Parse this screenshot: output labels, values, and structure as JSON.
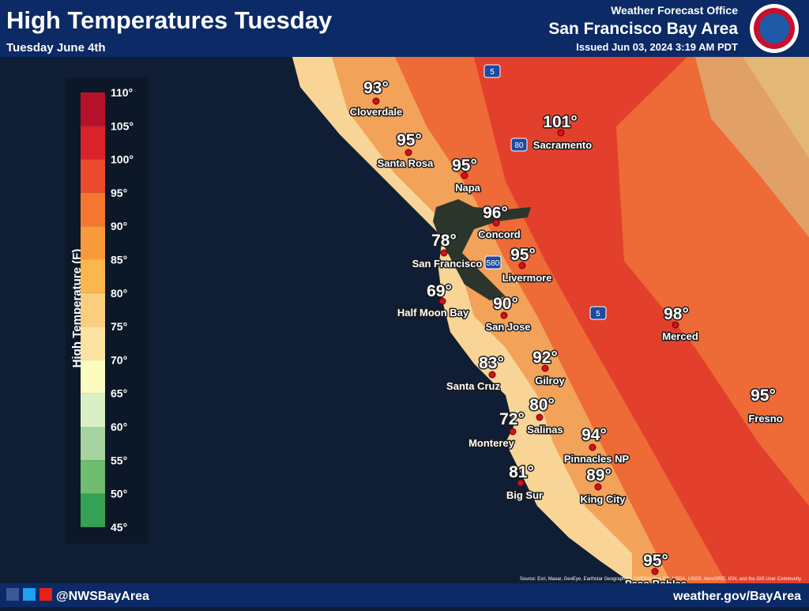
{
  "header": {
    "title": "High Temperatures Tuesday",
    "subtitle": "Tuesday June 4th",
    "office": "Weather Forecast Office",
    "area": "San Francisco Bay Area",
    "issued": "Issued Jun 03, 2024 3:19 AM PDT"
  },
  "legend": {
    "title": "High Temperature (F)",
    "labels": [
      "110°",
      "105°",
      "100°",
      "95°",
      "90°",
      "85°",
      "80°",
      "75°",
      "70°",
      "65°",
      "60°",
      "55°",
      "50°",
      "45°"
    ]
  },
  "highways": [
    "5",
    "80",
    "580",
    "5"
  ],
  "cities": [
    {
      "name": "Cloverdale",
      "temp": "93°"
    },
    {
      "name": "Santa Rosa",
      "temp": "95°"
    },
    {
      "name": "Sacramento",
      "temp": "101°"
    },
    {
      "name": "Napa",
      "temp": "95°"
    },
    {
      "name": "Concord",
      "temp": "96°"
    },
    {
      "name": "San Francisco",
      "temp": "78°"
    },
    {
      "name": "Livermore",
      "temp": "95°"
    },
    {
      "name": "Half Moon Bay",
      "temp": "69°"
    },
    {
      "name": "San Jose",
      "temp": "90°"
    },
    {
      "name": "Santa Cruz",
      "temp": "83°"
    },
    {
      "name": "Gilroy",
      "temp": "92°"
    },
    {
      "name": "Salinas",
      "temp": "80°"
    },
    {
      "name": "Monterey",
      "temp": "72°"
    },
    {
      "name": "Merced",
      "temp": "98°"
    },
    {
      "name": "Fresno",
      "temp": "95°"
    },
    {
      "name": "Pinnacles NP",
      "temp": "94°"
    },
    {
      "name": "Big Sur",
      "temp": "81°"
    },
    {
      "name": "King City",
      "temp": "89°"
    },
    {
      "name": "Paso Robles",
      "temp": "95°"
    }
  ],
  "footer": {
    "handle": "@NWSBayArea",
    "website": "weather.gov/BayArea",
    "attribution": "Source: Esri, Maxar, GeoEye, Earthstar Geographics, CNES/Airbus DS, USDA, USGS, AeroGRID, IGN, and the GIS User Community"
  }
}
